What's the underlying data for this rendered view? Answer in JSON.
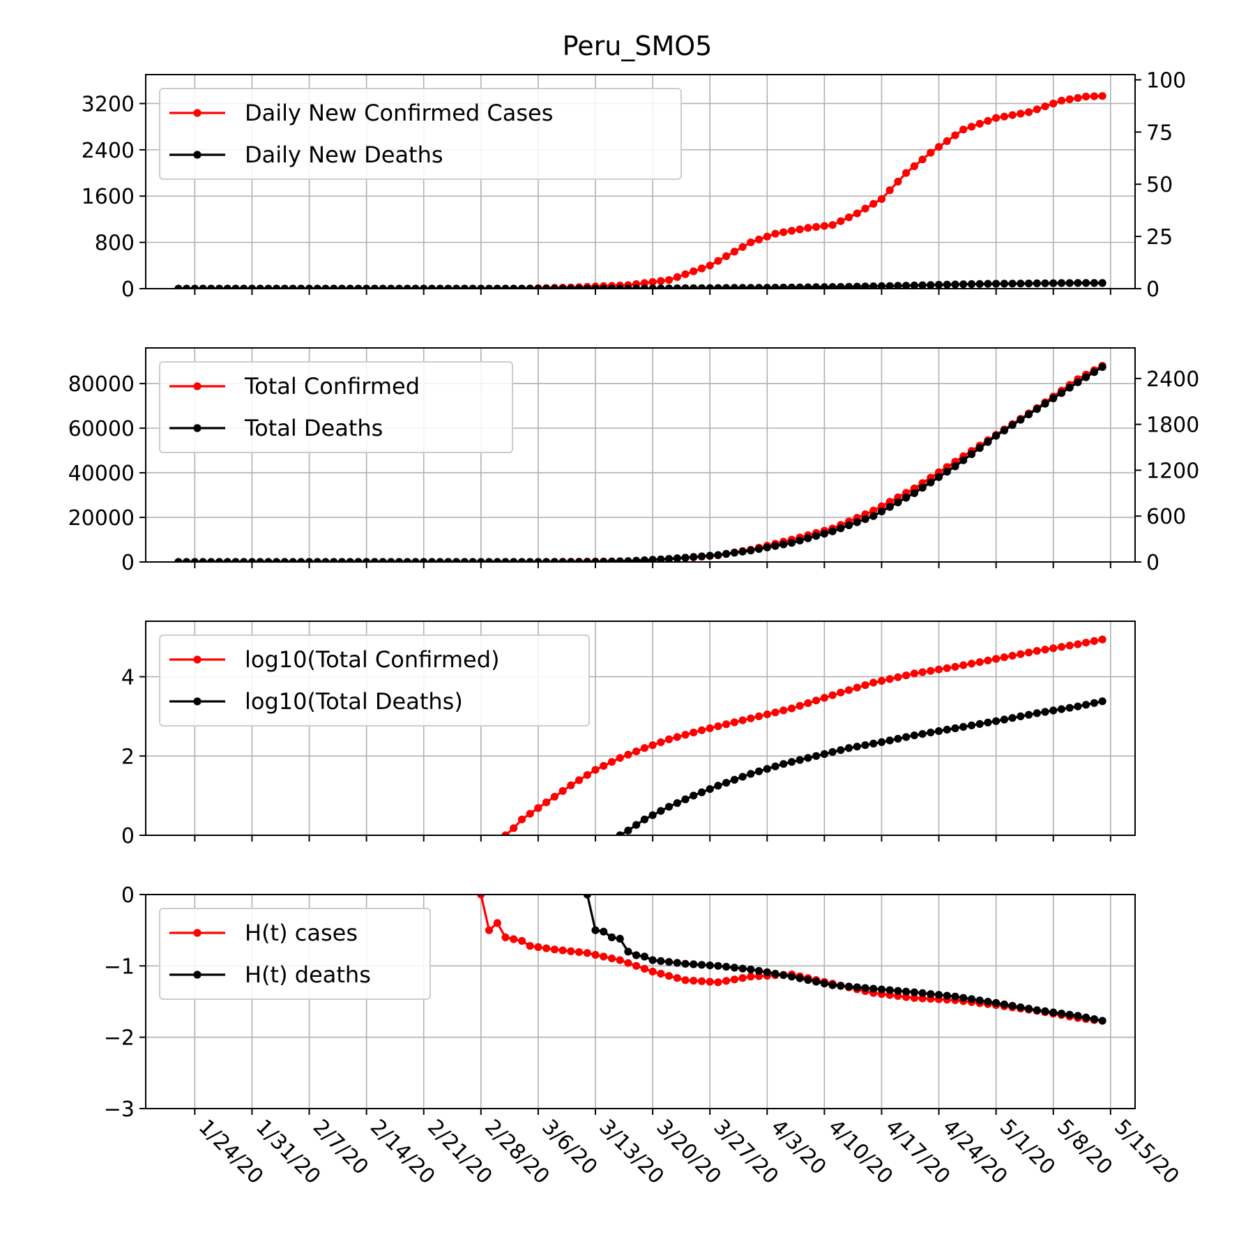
{
  "figure_title": "Peru_SMO5",
  "colors": {
    "cases": "#ff0000",
    "deaths": "#000000",
    "grid": "#b0b0b0"
  },
  "chart_data": [
    {
      "type": "line",
      "subplot": "daily-new",
      "grid": true,
      "legend_position": "top-left",
      "x_start": "1/22/20",
      "x_ticks": [
        "1/24/20",
        "1/31/20",
        "2/7/20",
        "2/14/20",
        "2/21/20",
        "2/28/20",
        "3/6/20",
        "3/13/20",
        "3/20/20",
        "3/27/20",
        "4/3/20",
        "4/10/20",
        "4/17/20",
        "4/24/20",
        "5/1/20",
        "5/8/20",
        "5/15/20"
      ],
      "y_left": {
        "ylim": [
          0,
          3700
        ],
        "ticks": [
          0,
          800,
          1600,
          2400,
          3200
        ]
      },
      "y_right": {
        "ylim": [
          0,
          102.5
        ],
        "ticks": [
          0,
          25,
          50,
          75,
          100
        ]
      },
      "series": [
        {
          "name": "Daily New Confirmed Cases",
          "color": "#ff0000",
          "axis": "left",
          "knots": [
            [
              0,
              0
            ],
            [
              42,
              0
            ],
            [
              48,
              20
            ],
            [
              55,
              60
            ],
            [
              60,
              150
            ],
            [
              65,
              400
            ],
            [
              70,
              800
            ],
            [
              73,
              950
            ],
            [
              77,
              1050
            ],
            [
              80,
              1100
            ],
            [
              83,
              1300
            ],
            [
              86,
              1550
            ],
            [
              89,
              2000
            ],
            [
              92,
              2350
            ],
            [
              96,
              2750
            ],
            [
              100,
              2950
            ],
            [
              104,
              3050
            ],
            [
              108,
              3250
            ],
            [
              111,
              3320
            ],
            [
              113,
              3330
            ]
          ]
        },
        {
          "name": "Daily New Deaths",
          "color": "#000000",
          "axis": "left",
          "knots": [
            [
              0,
              0
            ],
            [
              50,
              0
            ],
            [
              55,
              1
            ],
            [
              58,
              3
            ],
            [
              60,
              5
            ],
            [
              64,
              9
            ],
            [
              68,
              13
            ],
            [
              72,
              16
            ],
            [
              75,
              20
            ],
            [
              78,
              25
            ],
            [
              81,
              30
            ],
            [
              84,
              38
            ],
            [
              87,
              46
            ],
            [
              90,
              55
            ],
            [
              93,
              66
            ],
            [
              96,
              76
            ],
            [
              99,
              83
            ],
            [
              102,
              87
            ],
            [
              105,
              91
            ],
            [
              108,
              96
            ],
            [
              110,
              98
            ],
            [
              113,
              98
            ]
          ]
        }
      ]
    },
    {
      "type": "line",
      "subplot": "cumulative",
      "grid": true,
      "legend_position": "top-left",
      "x_start": "1/22/20",
      "x_ticks": [
        "1/24/20",
        "1/31/20",
        "2/7/20",
        "2/14/20",
        "2/21/20",
        "2/28/20",
        "3/6/20",
        "3/13/20",
        "3/20/20",
        "3/27/20",
        "4/3/20",
        "4/10/20",
        "4/17/20",
        "4/24/20",
        "5/1/20",
        "5/8/20",
        "5/15/20"
      ],
      "y_left": {
        "ylim": [
          0,
          96000
        ],
        "ticks": [
          0,
          20000,
          40000,
          60000,
          80000
        ]
      },
      "y_right": {
        "ylim": [
          0,
          2800
        ],
        "ticks": [
          0,
          600,
          1200,
          1800,
          2400
        ]
      },
      "series": [
        {
          "name": "Total Confirmed",
          "color": "#ff0000",
          "axis": "left",
          "knots": [
            [
              0,
              0
            ],
            [
              44,
              0
            ],
            [
              55,
              300
            ],
            [
              62,
              1800
            ],
            [
              66,
              3000
            ],
            [
              70,
              5500
            ],
            [
              75,
              10000
            ],
            [
              80,
              15000
            ],
            [
              85,
              23000
            ],
            [
              90,
              33000
            ],
            [
              95,
              45000
            ],
            [
              100,
              57000
            ],
            [
              105,
              69000
            ],
            [
              110,
              82000
            ],
            [
              113,
              88000
            ]
          ]
        },
        {
          "name": "Total Deaths",
          "color": "#000000",
          "axis": "right",
          "knots": [
            [
              0,
              0
            ],
            [
              50,
              0
            ],
            [
              55,
              10
            ],
            [
              60,
              40
            ],
            [
              66,
              90
            ],
            [
              70,
              150
            ],
            [
              75,
              250
            ],
            [
              80,
              400
            ],
            [
              85,
              600
            ],
            [
              90,
              900
            ],
            [
              95,
              1250
            ],
            [
              100,
              1650
            ],
            [
              105,
              2000
            ],
            [
              110,
              2350
            ],
            [
              113,
              2550
            ]
          ]
        }
      ]
    },
    {
      "type": "line",
      "subplot": "log10",
      "grid": true,
      "legend_position": "top-left",
      "x_start": "1/22/20",
      "x_ticks": [
        "1/24/20",
        "1/31/20",
        "2/7/20",
        "2/14/20",
        "2/21/20",
        "2/28/20",
        "3/6/20",
        "3/13/20",
        "3/20/20",
        "3/27/20",
        "4/3/20",
        "4/10/20",
        "4/17/20",
        "4/24/20",
        "5/1/20",
        "5/8/20",
        "5/15/20"
      ],
      "y_left": {
        "ylim": [
          0,
          5.4
        ],
        "ticks": [
          0,
          2,
          4
        ]
      },
      "series": [
        {
          "name": "log10(Total Confirmed)",
          "color": "#ff0000",
          "axis": "left",
          "knots": [
            [
              40,
              0
            ],
            [
              41,
              0.18
            ],
            [
              42,
              0.4
            ],
            [
              45,
              0.83
            ],
            [
              48,
              1.26
            ],
            [
              51,
              1.65
            ],
            [
              54,
              1.95
            ],
            [
              57,
              2.2
            ],
            [
              60,
              2.42
            ],
            [
              64,
              2.65
            ],
            [
              68,
              2.85
            ],
            [
              72,
              3.05
            ],
            [
              75,
              3.2
            ],
            [
              78,
              3.4
            ],
            [
              81,
              3.6
            ],
            [
              85,
              3.85
            ],
            [
              90,
              4.08
            ],
            [
              95,
              4.25
            ],
            [
              100,
              4.45
            ],
            [
              105,
              4.65
            ],
            [
              110,
              4.82
            ],
            [
              113,
              4.94
            ]
          ]
        },
        {
          "name": "log10(Total Deaths)",
          "color": "#000000",
          "axis": "left",
          "knots": [
            [
              54,
              0
            ],
            [
              55,
              0.12
            ],
            [
              57,
              0.4
            ],
            [
              60,
              0.72
            ],
            [
              63,
              1.0
            ],
            [
              66,
              1.25
            ],
            [
              70,
              1.55
            ],
            [
              74,
              1.8
            ],
            [
              78,
              2.0
            ],
            [
              82,
              2.2
            ],
            [
              86,
              2.35
            ],
            [
              90,
              2.52
            ],
            [
              95,
              2.7
            ],
            [
              100,
              2.88
            ],
            [
              105,
              3.08
            ],
            [
              110,
              3.25
            ],
            [
              113,
              3.38
            ]
          ]
        }
      ]
    },
    {
      "type": "line",
      "subplot": "hurst",
      "grid": true,
      "legend_position": "top-left",
      "x_start": "1/22/20",
      "x_ticks": [
        "1/24/20",
        "1/31/20",
        "2/7/20",
        "2/14/20",
        "2/21/20",
        "2/28/20",
        "3/6/20",
        "3/13/20",
        "3/20/20",
        "3/27/20",
        "4/3/20",
        "4/10/20",
        "4/17/20",
        "4/24/20",
        "5/1/20",
        "5/8/20",
        "5/15/20"
      ],
      "y_left": {
        "ylim": [
          -3,
          0
        ],
        "ticks": [
          -3,
          -2,
          -1,
          0
        ]
      },
      "series": [
        {
          "name": "H(t) cases",
          "color": "#ff0000",
          "axis": "left",
          "knots": [
            [
              37,
              0
            ],
            [
              38,
              -0.5
            ],
            [
              39,
              -0.4
            ],
            [
              40,
              -0.6
            ],
            [
              42,
              -0.65
            ],
            [
              43,
              -0.72
            ],
            [
              46,
              -0.77
            ],
            [
              50,
              -0.82
            ],
            [
              54,
              -0.92
            ],
            [
              58,
              -1.08
            ],
            [
              62,
              -1.2
            ],
            [
              66,
              -1.23
            ],
            [
              70,
              -1.15
            ],
            [
              75,
              -1.12
            ],
            [
              80,
              -1.25
            ],
            [
              85,
              -1.38
            ],
            [
              90,
              -1.45
            ],
            [
              95,
              -1.48
            ],
            [
              100,
              -1.55
            ],
            [
              105,
              -1.63
            ],
            [
              110,
              -1.73
            ],
            [
              112,
              -1.76
            ]
          ]
        },
        {
          "name": "H(t) deaths",
          "color": "#000000",
          "axis": "left",
          "knots": [
            [
              50,
              0
            ],
            [
              51,
              -0.5
            ],
            [
              52,
              -0.52
            ],
            [
              53,
              -0.6
            ],
            [
              54,
              -0.62
            ],
            [
              55,
              -0.8
            ],
            [
              56,
              -0.85
            ],
            [
              57,
              -0.87
            ],
            [
              58,
              -0.92
            ],
            [
              62,
              -0.97
            ],
            [
              66,
              -1.0
            ],
            [
              70,
              -1.05
            ],
            [
              75,
              -1.15
            ],
            [
              80,
              -1.27
            ],
            [
              85,
              -1.32
            ],
            [
              90,
              -1.37
            ],
            [
              95,
              -1.43
            ],
            [
              100,
              -1.52
            ],
            [
              105,
              -1.62
            ],
            [
              110,
              -1.7
            ],
            [
              113,
              -1.77
            ]
          ]
        }
      ]
    }
  ]
}
